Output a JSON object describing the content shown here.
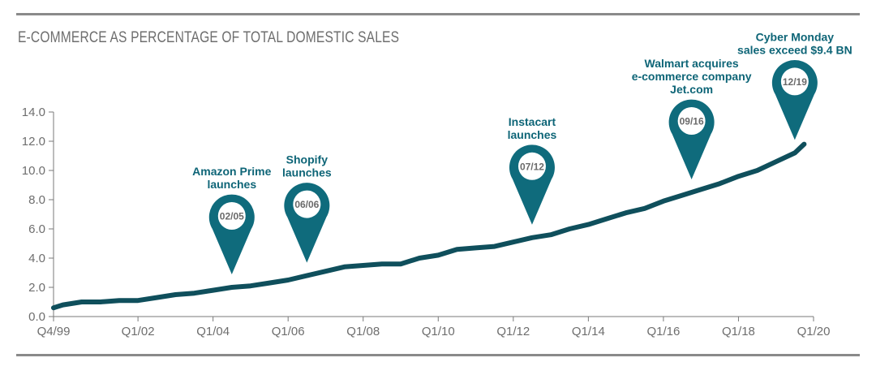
{
  "chart_data": {
    "type": "line",
    "title": "E-COMMERCE AS PERCENTAGE OF TOTAL DOMESTIC SALES",
    "xlabel": "",
    "ylabel": "",
    "ylim": [
      0,
      14
    ],
    "y_ticks": [
      "0.0",
      "2.0",
      "4.0",
      "6.0",
      "8.0",
      "10.0",
      "12.0",
      "14.0"
    ],
    "x_ticks": [
      {
        "label": "Q4/99",
        "t": 1999.75
      },
      {
        "label": "Q1/02",
        "t": 2002.0
      },
      {
        "label": "Q1/04",
        "t": 2004.0
      },
      {
        "label": "Q1/06",
        "t": 2006.0
      },
      {
        "label": "Q1/08",
        "t": 2008.0
      },
      {
        "label": "Q1/10",
        "t": 2010.0
      },
      {
        "label": "Q1/12",
        "t": 2012.0
      },
      {
        "label": "Q1/14",
        "t": 2014.0
      },
      {
        "label": "Q1/16",
        "t": 2016.0
      },
      {
        "label": "Q1/18",
        "t": 2018.0
      },
      {
        "label": "Q1/20",
        "t": 2020.0
      }
    ],
    "grid": false,
    "legend": "none",
    "colors": {
      "line": "#0f4f5c",
      "pin": "#0f6b7c",
      "annotation": "#0e6577",
      "axis": "#7a7a7a"
    },
    "series": [
      {
        "points": [
          [
            1999.75,
            0.6
          ],
          [
            2000.0,
            0.8
          ],
          [
            2000.5,
            1.0
          ],
          [
            2001.0,
            1.0
          ],
          [
            2001.5,
            1.1
          ],
          [
            2002.0,
            1.1
          ],
          [
            2002.5,
            1.3
          ],
          [
            2003.0,
            1.5
          ],
          [
            2003.5,
            1.6
          ],
          [
            2004.0,
            1.8
          ],
          [
            2004.5,
            2.0
          ],
          [
            2005.0,
            2.1
          ],
          [
            2005.5,
            2.3
          ],
          [
            2006.0,
            2.5
          ],
          [
            2006.5,
            2.8
          ],
          [
            2007.0,
            3.1
          ],
          [
            2007.5,
            3.4
          ],
          [
            2008.0,
            3.5
          ],
          [
            2008.5,
            3.6
          ],
          [
            2009.0,
            3.6
          ],
          [
            2009.5,
            4.0
          ],
          [
            2010.0,
            4.2
          ],
          [
            2010.5,
            4.6
          ],
          [
            2011.0,
            4.7
          ],
          [
            2011.5,
            4.8
          ],
          [
            2012.0,
            5.1
          ],
          [
            2012.5,
            5.4
          ],
          [
            2013.0,
            5.6
          ],
          [
            2013.5,
            6.0
          ],
          [
            2014.0,
            6.3
          ],
          [
            2014.5,
            6.7
          ],
          [
            2015.0,
            7.1
          ],
          [
            2015.5,
            7.4
          ],
          [
            2016.0,
            7.9
          ],
          [
            2016.5,
            8.3
          ],
          [
            2017.0,
            8.7
          ],
          [
            2017.5,
            9.1
          ],
          [
            2018.0,
            9.6
          ],
          [
            2018.5,
            10.0
          ],
          [
            2019.0,
            10.6
          ],
          [
            2019.5,
            11.2
          ],
          [
            2019.75,
            11.8
          ]
        ]
      }
    ],
    "annotations": [
      {
        "date": "02/05",
        "t": 2004.5,
        "lines": [
          "Amazon Prime",
          "launches"
        ]
      },
      {
        "date": "06/06",
        "t": 2006.5,
        "lines": [
          "Shopify",
          "launches"
        ]
      },
      {
        "date": "07/12",
        "t": 2012.5,
        "lines": [
          "Instacart",
          "launches"
        ]
      },
      {
        "date": "09/16",
        "t": 2016.75,
        "lines": [
          "Walmart acquires",
          "e-commerce company",
          "Jet.com"
        ]
      },
      {
        "date": "12/19",
        "t": 2019.5,
        "lines": [
          "Cyber Monday",
          "sales exceed $9.4 BN"
        ]
      }
    ]
  }
}
